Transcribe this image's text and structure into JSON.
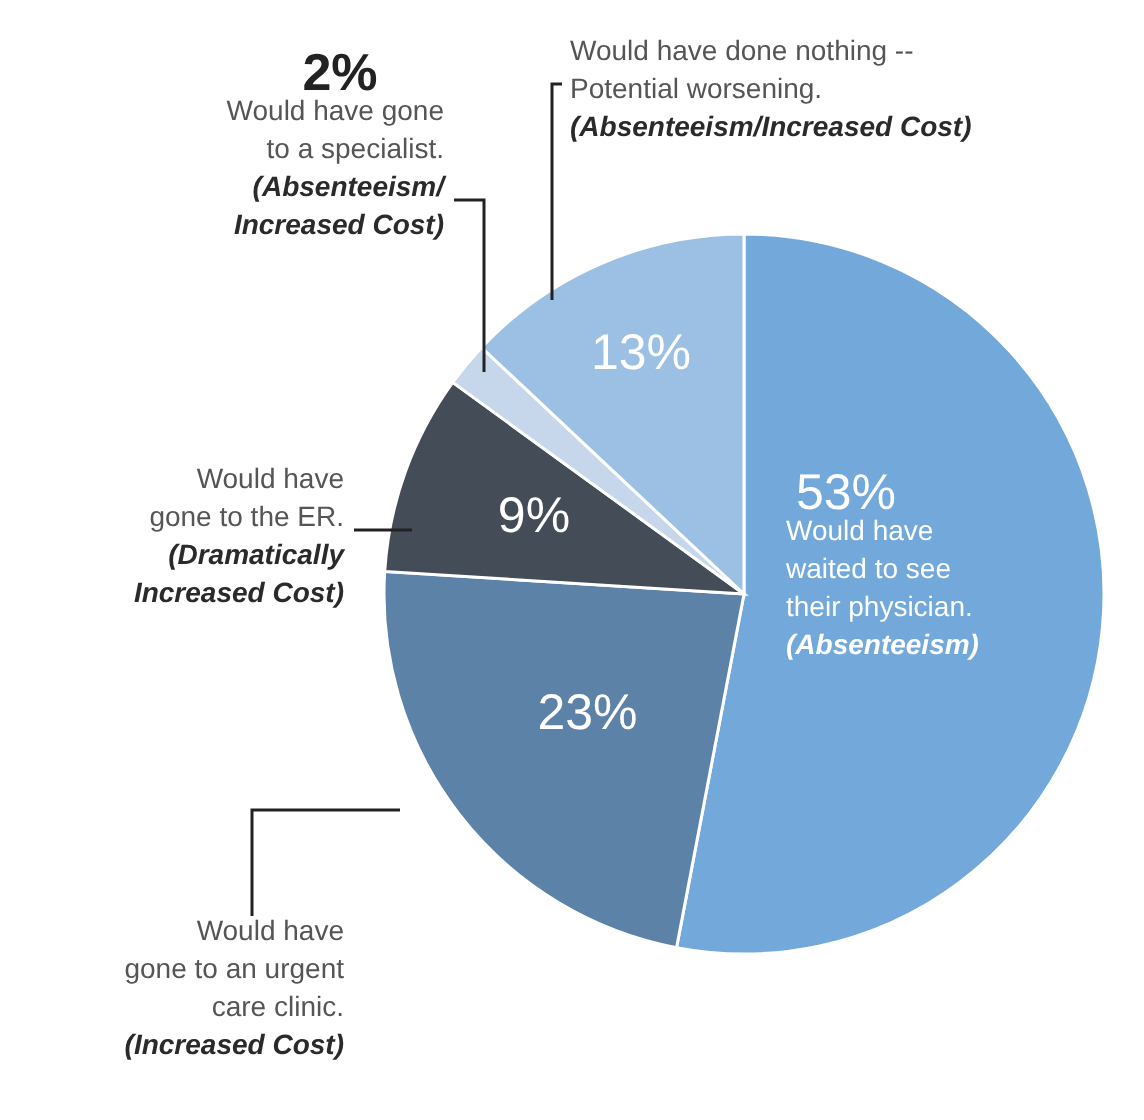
{
  "chart_data": {
    "type": "pie",
    "categories": [
      "Would have waited to see their physician. (Absenteeism)",
      "Would have gone to an urgent care clinic. (Increased Cost)",
      "Would have gone to the ER. (Dramatically Increased Cost)",
      "Would have gone to a specialist. (Absenteeism/ Increased Cost)",
      "Would have done nothing -- Potential worsening. (Absenteeism/Increased Cost)"
    ],
    "values": [
      53,
      23,
      9,
      2,
      13
    ],
    "colors": [
      "#72a8da",
      "#5d82a8",
      "#434c57",
      "#c6d7ec",
      "#9cc0e4"
    ],
    "value_labels": [
      "53%",
      "23%",
      "9%",
      "2%",
      "13%"
    ]
  }
}
